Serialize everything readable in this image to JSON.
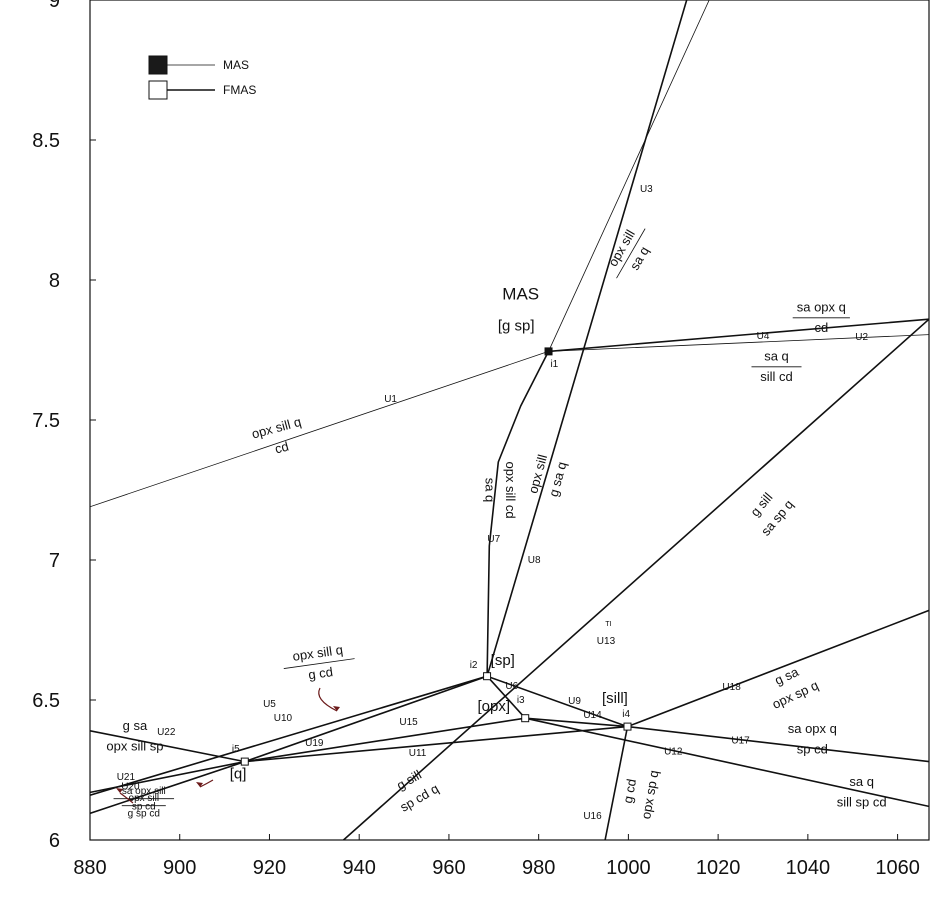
{
  "chart_data": {
    "type": "phase-diagram",
    "title": "",
    "xlabel": "",
    "ylabel": "",
    "xlim": [
      880,
      1067
    ],
    "ylim": [
      6,
      9
    ],
    "x_ticks": [
      880,
      900,
      920,
      940,
      960,
      980,
      1000,
      1020,
      1040,
      1060
    ],
    "y_ticks": [
      6,
      6.5,
      7,
      7.5,
      8,
      8.5,
      9
    ],
    "y_tick_labels": [
      "6",
      "6.5",
      "7",
      "7.5",
      "8",
      "8.5",
      "9"
    ],
    "legend": [
      {
        "label": "MAS",
        "fill": "#1a1a1a"
      },
      {
        "label": "FMAS",
        "fill": "#ffffff"
      }
    ],
    "invariant_points": [
      {
        "id": "i1",
        "x": 982.2,
        "y": 7.745,
        "system": "MAS"
      },
      {
        "id": "i2",
        "x": 968.5,
        "y": 6.585,
        "system": "FMAS"
      },
      {
        "id": "i3",
        "x": 977.0,
        "y": 6.435,
        "system": "FMAS"
      },
      {
        "id": "i4",
        "x": 999.8,
        "y": 6.405,
        "system": "FMAS"
      },
      {
        "id": "i5",
        "x": 914.5,
        "y": 6.28,
        "system": "FMAS"
      }
    ],
    "curves": [
      {
        "id": "U1",
        "weight": "thin",
        "points": [
          [
            880,
            7.19
          ],
          [
            982.2,
            7.745
          ]
        ]
      },
      {
        "id": "U2",
        "weight": "thin",
        "points": [
          [
            982.2,
            7.745
          ],
          [
            1067,
            7.805
          ]
        ]
      },
      {
        "id": "U3",
        "weight": "thin",
        "points": [
          [
            982.2,
            7.745
          ],
          [
            1018,
            9.0
          ]
        ]
      },
      {
        "id": "U4",
        "weight": "thick",
        "points": [
          [
            982.2,
            7.745
          ],
          [
            1067,
            7.86
          ]
        ]
      },
      {
        "id": "U7",
        "weight": "thick",
        "points": [
          [
            982.2,
            7.745
          ],
          [
            976,
            7.55
          ],
          [
            971,
            7.35
          ],
          [
            969,
            7.05
          ],
          [
            968.5,
            6.585
          ]
        ]
      },
      {
        "id": "U8",
        "weight": "thick",
        "points": [
          [
            968.5,
            6.585
          ],
          [
            1013,
            9.0
          ]
        ]
      },
      {
        "id": "U13",
        "weight": "thick",
        "points": [
          [
            936.5,
            6.0
          ],
          [
            1067,
            7.86
          ]
        ]
      },
      {
        "id": "U18",
        "weight": "thick",
        "points": [
          [
            999.8,
            6.405
          ],
          [
            1067,
            6.82
          ]
        ]
      },
      {
        "id": "U17",
        "weight": "thick",
        "points": [
          [
            999.8,
            6.405
          ],
          [
            1067,
            6.28
          ]
        ]
      },
      {
        "id": "U12",
        "weight": "thick",
        "points": [
          [
            977.0,
            6.435
          ],
          [
            1067,
            6.12
          ]
        ]
      },
      {
        "id": "U16",
        "weight": "thick",
        "points": [
          [
            999.8,
            6.405
          ],
          [
            994.8,
            6.0
          ]
        ]
      },
      {
        "id": "U6",
        "weight": "thick",
        "points": [
          [
            968.5,
            6.585
          ],
          [
            977.0,
            6.435
          ]
        ]
      },
      {
        "id": "U9",
        "weight": "thick",
        "points": [
          [
            968.5,
            6.585
          ],
          [
            999.8,
            6.405
          ]
        ]
      },
      {
        "id": "U14",
        "weight": "thick",
        "points": [
          [
            977.0,
            6.435
          ],
          [
            999.8,
            6.405
          ]
        ]
      },
      {
        "id": "U5",
        "weight": "thick",
        "points": [
          [
            880,
            6.16
          ],
          [
            968.5,
            6.585
          ]
        ]
      },
      {
        "id": "U10",
        "weight": "thick",
        "points": [
          [
            914.5,
            6.28
          ],
          [
            968.5,
            6.585
          ]
        ]
      },
      {
        "id": "U15",
        "weight": "thick",
        "points": [
          [
            914.5,
            6.28
          ],
          [
            977.0,
            6.435
          ]
        ]
      },
      {
        "id": "U19",
        "weight": "thick",
        "points": [
          [
            914.5,
            6.28
          ],
          [
            999.8,
            6.405
          ]
        ]
      },
      {
        "id": "U22",
        "weight": "thick",
        "points": [
          [
            880,
            6.39
          ],
          [
            914.5,
            6.28
          ]
        ]
      },
      {
        "id": "U21",
        "weight": "thick",
        "points": [
          [
            880,
            6.17
          ],
          [
            914.5,
            6.28
          ]
        ]
      },
      {
        "id": "U20",
        "weight": "thick",
        "points": [
          [
            880,
            6.095
          ],
          [
            914.5,
            6.28
          ]
        ]
      }
    ],
    "curve_labels": [
      {
        "text": "U1",
        "x": 947,
        "y": 7.565
      },
      {
        "text": "U2",
        "x": 1052,
        "y": 7.785
      },
      {
        "text": "U3",
        "x": 1004,
        "y": 8.315
      },
      {
        "text": "U4",
        "x": 1030,
        "y": 7.79
      },
      {
        "text": "U5",
        "x": 920,
        "y": 6.475
      },
      {
        "text": "U6",
        "x": 974,
        "y": 6.54
      },
      {
        "text": "U7",
        "x": 970,
        "y": 7.065
      },
      {
        "text": "U8",
        "x": 979,
        "y": 6.99
      },
      {
        "text": "U9",
        "x": 988,
        "y": 6.485
      },
      {
        "text": "U10",
        "x": 923,
        "y": 6.425
      },
      {
        "text": "U11",
        "x": 953,
        "y": 6.3
      },
      {
        "text": "U12",
        "x": 1010,
        "y": 6.305
      },
      {
        "text": "U13",
        "x": 995,
        "y": 6.7
      },
      {
        "text": "U14",
        "x": 992,
        "y": 6.435
      },
      {
        "text": "U15",
        "x": 951,
        "y": 6.41
      },
      {
        "text": "U16",
        "x": 992,
        "y": 6.075
      },
      {
        "text": "U17",
        "x": 1025,
        "y": 6.345
      },
      {
        "text": "U18",
        "x": 1023,
        "y": 6.535
      },
      {
        "text": "U19",
        "x": 930,
        "y": 6.335
      },
      {
        "text": "U20",
        "x": 889,
        "y": 6.18
      },
      {
        "text": "U21",
        "x": 888,
        "y": 6.215
      },
      {
        "text": "U22",
        "x": 897,
        "y": 6.375
      },
      {
        "text": "ᵀᴵ",
        "x": 995.5,
        "y": 6.755
      }
    ],
    "point_labels": [
      {
        "text": "i1",
        "x": 983.5,
        "y": 7.69
      },
      {
        "text": "i2",
        "x": 965.5,
        "y": 6.615
      },
      {
        "text": "i3",
        "x": 976,
        "y": 6.49
      },
      {
        "text": "i4",
        "x": 999.5,
        "y": 6.44
      },
      {
        "text": "i5",
        "x": 912.5,
        "y": 6.315
      }
    ],
    "absent_phase_labels": [
      {
        "text": "[g sp]",
        "x": 975,
        "y": 7.82
      },
      {
        "text": "[sp]",
        "x": 972,
        "y": 6.625
      },
      {
        "text": "[opx]",
        "x": 970,
        "y": 6.46
      },
      {
        "text": "[sill]",
        "x": 997,
        "y": 6.49
      },
      {
        "text": "[q]",
        "x": 913,
        "y": 6.22
      }
    ],
    "system_label": {
      "text": "MAS",
      "x": 976,
      "y": 7.93
    },
    "reaction_labels": [
      {
        "top": "opx sill q",
        "bottom": "cd",
        "x": 922,
        "y": 7.445,
        "angle": -15,
        "underline": false
      },
      {
        "top": "opx sill",
        "bottom": "sa q",
        "x": 1000,
        "y": 8.1,
        "angle": -60,
        "underline": true
      },
      {
        "top": "sa opx q",
        "bottom": "cd",
        "x": 1043,
        "y": 7.875,
        "angle": 0,
        "underline": true
      },
      {
        "top": "sa q",
        "bottom": "sill cd",
        "x": 1033,
        "y": 7.7,
        "angle": 0,
        "underline": true
      },
      {
        "top": "opx sill cd",
        "bottom": "sa q",
        "x": 972,
        "y": 7.25,
        "angle": 90,
        "underline": false
      },
      {
        "top": "opx sill",
        "bottom": "g sa q",
        "x": 981.5,
        "y": 7.3,
        "angle": -75,
        "underline": false
      },
      {
        "top": "g sill",
        "bottom": "sa sp q",
        "x": 1031,
        "y": 7.18,
        "angle": -50,
        "underline": false
      },
      {
        "top": "opx sill q",
        "bottom": "g cd",
        "x": 931,
        "y": 6.64,
        "angle": -8,
        "underline": true
      },
      {
        "top": "g sa",
        "bottom": "opx sill sp",
        "x": 890,
        "y": 6.38,
        "angle": 0,
        "underline": false
      },
      {
        "top": "g sa",
        "bottom": "opx sp q",
        "x": 1036,
        "y": 6.56,
        "angle": -25,
        "underline": false
      },
      {
        "top": "sa opx q",
        "bottom": "sp cd",
        "x": 1041,
        "y": 6.37,
        "angle": 0,
        "underline": false
      },
      {
        "top": "sa  q",
        "bottom": "sill sp cd",
        "x": 1052,
        "y": 6.18,
        "angle": 0,
        "underline": false
      },
      {
        "top": "g cd",
        "bottom": "opx sp q",
        "x": 1002,
        "y": 6.17,
        "angle": -80,
        "underline": false
      },
      {
        "top": "g sill",
        "bottom": "sp cd q",
        "x": 952,
        "y": 6.19,
        "angle": -30,
        "underline": false
      },
      {
        "top": "opx sill",
        "bottom": "g sp cd",
        "x": 892,
        "y": 6.13,
        "angle": 0,
        "underline": true
      },
      {
        "top": "sa opx sill",
        "bottom": "sp cd",
        "x": 892,
        "y": 6.155,
        "angle": 0,
        "underline": true
      }
    ]
  }
}
